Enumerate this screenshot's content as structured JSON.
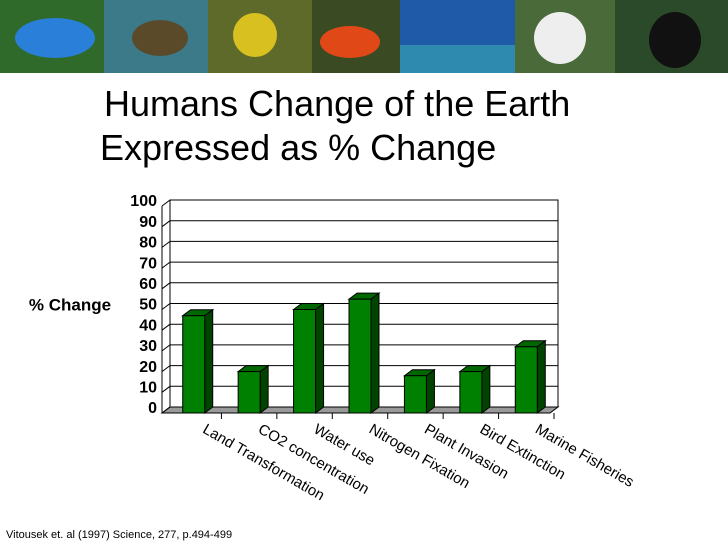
{
  "chart_data": {
    "type": "bar",
    "title": "Humans Change of the Earth Expressed as % Change",
    "y_label": "% Change",
    "categories": [
      "Land Transformation",
      "CO2 concentration",
      "Water use",
      "Nitrogen Fixation",
      "Plant Invasion",
      "Bird Extinction",
      "Marine Fisheries"
    ],
    "values": [
      47,
      20,
      50,
      55,
      18,
      20,
      32
    ],
    "color": "#008000",
    "ylim": [
      0,
      100
    ],
    "yticks": [
      0,
      10,
      20,
      30,
      40,
      50,
      60,
      70,
      80,
      90,
      100
    ],
    "grid": true,
    "source": "Vitousek et. al (1997) Science, 277, p.494-499"
  }
}
